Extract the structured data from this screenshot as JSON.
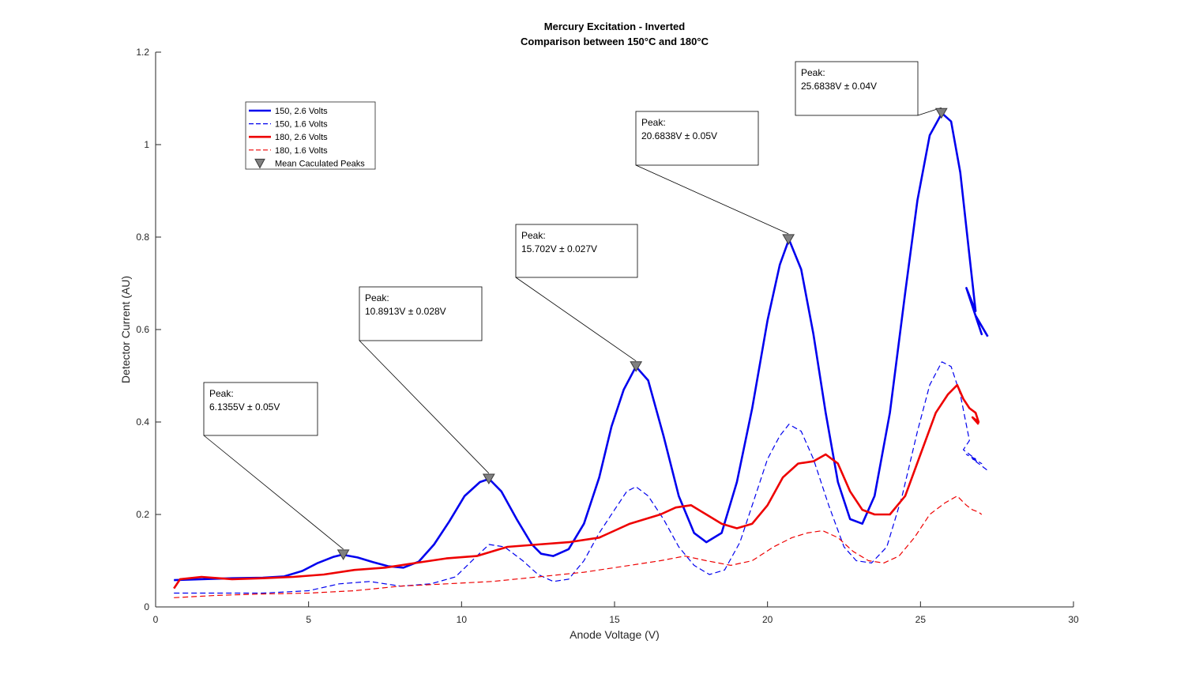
{
  "chart_data": {
    "type": "line",
    "title": "Mercury Excitation - Inverted",
    "subtitle": "Comparison between 150°C and 180°C",
    "xlabel": "Anode Voltage (V)",
    "ylabel": "Detector Current (AU)",
    "xlim": [
      0,
      30
    ],
    "ylim": [
      0,
      1.2
    ],
    "xticks": [
      0,
      5,
      10,
      15,
      20,
      25,
      30
    ],
    "xtick_labels": [
      "0",
      "5",
      "10",
      "15",
      "20",
      "25",
      "30"
    ],
    "yticks": [
      0,
      0.2,
      0.4,
      0.6,
      0.8,
      1.0,
      1.2
    ],
    "ytick_labels": [
      "0",
      "0.2",
      "0.4",
      "0.6",
      "0.8",
      "1",
      "1.2"
    ],
    "grid": false,
    "legend_position": "top-left",
    "series": [
      {
        "name": "150, 2.6 Volts",
        "color": "#0000ee",
        "style": "solid",
        "x": [
          0.6,
          1.5,
          2.5,
          3.5,
          4.2,
          4.8,
          5.3,
          5.8,
          6.1,
          6.6,
          7.1,
          7.6,
          8.1,
          8.6,
          9.1,
          9.6,
          10.1,
          10.6,
          10.9,
          11.3,
          11.8,
          12.3,
          12.6,
          13.0,
          13.5,
          14.0,
          14.5,
          14.9,
          15.3,
          15.7,
          16.1,
          16.6,
          17.1,
          17.6,
          18.0,
          18.5,
          19.0,
          19.5,
          20.0,
          20.4,
          20.7,
          21.1,
          21.5,
          21.9,
          22.3,
          22.7,
          23.1,
          23.5,
          24.0,
          24.5,
          24.9,
          25.3,
          25.7,
          26.0,
          26.3,
          26.6,
          26.8,
          26.5,
          26.9,
          26.6,
          27.0,
          26.8,
          27.2
        ],
        "y": [
          0.058,
          0.06,
          0.062,
          0.063,
          0.066,
          0.078,
          0.095,
          0.108,
          0.113,
          0.107,
          0.097,
          0.088,
          0.085,
          0.098,
          0.135,
          0.185,
          0.24,
          0.27,
          0.277,
          0.25,
          0.19,
          0.135,
          0.115,
          0.11,
          0.125,
          0.18,
          0.28,
          0.39,
          0.47,
          0.52,
          0.49,
          0.37,
          0.24,
          0.16,
          0.14,
          0.16,
          0.27,
          0.43,
          0.62,
          0.74,
          0.795,
          0.73,
          0.59,
          0.42,
          0.27,
          0.19,
          0.18,
          0.24,
          0.42,
          0.68,
          0.88,
          1.02,
          1.068,
          1.05,
          0.94,
          0.76,
          0.64,
          0.69,
          0.61,
          0.67,
          0.59,
          0.63,
          0.585
        ]
      },
      {
        "name": "150, 1.6 Volts",
        "color": "#0000ee",
        "style": "dashed",
        "x": [
          0.6,
          2.0,
          3.5,
          5.0,
          6.0,
          7.0,
          8.0,
          9.0,
          9.8,
          10.5,
          10.9,
          11.4,
          12.0,
          12.5,
          13.0,
          13.5,
          14.0,
          14.5,
          15.0,
          15.4,
          15.7,
          16.1,
          16.6,
          17.1,
          17.6,
          18.1,
          18.6,
          19.1,
          19.6,
          20.0,
          20.4,
          20.7,
          21.1,
          21.5,
          22.0,
          22.5,
          22.9,
          23.4,
          23.9,
          24.4,
          24.9,
          25.3,
          25.7,
          26.0,
          26.3,
          26.6,
          26.4,
          26.8,
          26.5,
          27.0,
          26.7,
          27.2
        ],
        "y": [
          0.03,
          0.03,
          0.03,
          0.035,
          0.05,
          0.055,
          0.045,
          0.05,
          0.065,
          0.11,
          0.135,
          0.13,
          0.1,
          0.07,
          0.055,
          0.06,
          0.1,
          0.16,
          0.21,
          0.25,
          0.26,
          0.24,
          0.19,
          0.13,
          0.09,
          0.07,
          0.08,
          0.14,
          0.24,
          0.32,
          0.37,
          0.395,
          0.38,
          0.32,
          0.22,
          0.13,
          0.1,
          0.095,
          0.13,
          0.24,
          0.38,
          0.48,
          0.53,
          0.52,
          0.46,
          0.36,
          0.34,
          0.32,
          0.33,
          0.31,
          0.32,
          0.295
        ]
      },
      {
        "name": "180, 2.6 Volts",
        "color": "#ee0000",
        "style": "solid",
        "x": [
          0.6,
          0.8,
          1.5,
          2.5,
          3.5,
          4.5,
          5.5,
          6.5,
          7.5,
          8.5,
          9.5,
          10.5,
          11.5,
          12.5,
          13.5,
          14.5,
          15.0,
          15.5,
          16.0,
          16.5,
          17.0,
          17.5,
          18.0,
          18.5,
          19.0,
          19.5,
          20.0,
          20.5,
          21.0,
          21.5,
          21.9,
          22.3,
          22.7,
          23.1,
          23.5,
          24.0,
          24.5,
          25.0,
          25.5,
          25.9,
          26.2,
          26.4,
          26.6,
          26.8,
          26.9,
          26.7,
          26.9
        ],
        "y": [
          0.04,
          0.06,
          0.065,
          0.06,
          0.062,
          0.065,
          0.07,
          0.08,
          0.085,
          0.095,
          0.105,
          0.11,
          0.13,
          0.135,
          0.14,
          0.15,
          0.165,
          0.18,
          0.19,
          0.2,
          0.215,
          0.22,
          0.2,
          0.18,
          0.17,
          0.18,
          0.22,
          0.28,
          0.31,
          0.315,
          0.33,
          0.31,
          0.25,
          0.21,
          0.2,
          0.2,
          0.24,
          0.33,
          0.42,
          0.46,
          0.48,
          0.45,
          0.43,
          0.42,
          0.4,
          0.41,
          0.395
        ]
      },
      {
        "name": "180, 1.6 Volts",
        "color": "#ee0000",
        "style": "dashed",
        "x": [
          0.6,
          2.0,
          3.5,
          5.0,
          6.5,
          8.0,
          9.5,
          11.0,
          12.5,
          14.0,
          15.5,
          16.5,
          17.3,
          18.0,
          18.8,
          19.5,
          20.2,
          20.8,
          21.3,
          21.8,
          22.3,
          22.8,
          23.3,
          23.8,
          24.3,
          24.8,
          25.3,
          25.8,
          26.2,
          26.5,
          26.7,
          26.9,
          27.0
        ],
        "y": [
          0.02,
          0.025,
          0.028,
          0.03,
          0.035,
          0.045,
          0.05,
          0.055,
          0.065,
          0.075,
          0.09,
          0.1,
          0.11,
          0.1,
          0.09,
          0.1,
          0.13,
          0.15,
          0.16,
          0.165,
          0.15,
          0.12,
          0.1,
          0.095,
          0.11,
          0.15,
          0.2,
          0.225,
          0.24,
          0.22,
          0.21,
          0.205,
          0.2
        ]
      }
    ],
    "peaks_legend": "Mean Caculated Peaks",
    "peaks": [
      {
        "x": 6.1355,
        "y": 0.113,
        "label": "Peak:",
        "value": "6.1355V ± 0.05V"
      },
      {
        "x": 10.8913,
        "y": 0.277,
        "label": "Peak:",
        "value": "10.8913V ± 0.028V"
      },
      {
        "x": 15.702,
        "y": 0.52,
        "label": "Peak:",
        "value": "15.702V ± 0.027V"
      },
      {
        "x": 20.6838,
        "y": 0.795,
        "label": "Peak:",
        "value": "20.6838V ± 0.05V"
      },
      {
        "x": 25.6838,
        "y": 1.068,
        "label": "Peak:",
        "value": "25.6838V ± 0.04V"
      }
    ]
  }
}
